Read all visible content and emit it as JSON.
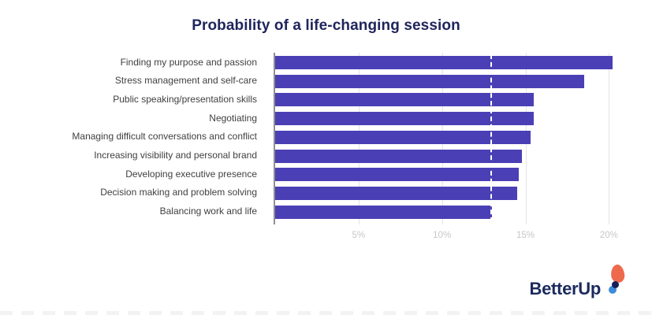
{
  "title": "Probability of a life-changing session",
  "chart_data": {
    "type": "bar",
    "orientation": "horizontal",
    "title": "Probability of a life-changing session",
    "categories": [
      "Finding my purpose and passion",
      "Stress management and self-care",
      "Public speaking/presentation skills",
      "Negotiating",
      "Managing difficult conversations and conflict",
      "Increasing visibility and personal brand",
      "Developing executive presence",
      "Decision making and problem solving",
      "Balancing work and life"
    ],
    "values": [
      20.2,
      18.5,
      15.5,
      15.5,
      15.3,
      14.8,
      14.6,
      14.5,
      13.0
    ],
    "unit": "%",
    "x_ticks": [
      "5%",
      "10%",
      "15%",
      "20%"
    ],
    "x_tick_values": [
      5,
      10,
      15,
      20
    ],
    "xlim": [
      0,
      22.25
    ],
    "reference_line": {
      "value": 12.9,
      "style": "dashed",
      "color": "#ffffff"
    },
    "bar_color": "#4b3fb5",
    "grid": true,
    "gridline_color": "#e4e4e7",
    "axis_line_color": "#8f8f94",
    "tick_label_color": "#c7c7ca",
    "legend": "none"
  },
  "logo": {
    "text": "BetterUp",
    "text_color": "#1b2a5e",
    "balloon_color": "#ed6a4d",
    "dot_navy_color": "#13205a",
    "dot_blue_color": "#3e8cd8"
  }
}
